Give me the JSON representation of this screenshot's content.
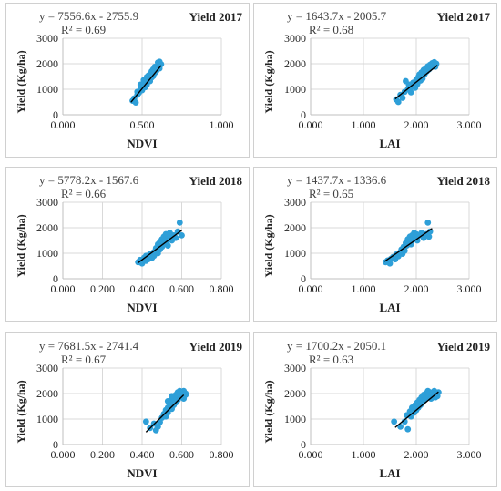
{
  "chart_data": [
    {
      "type": "scatter",
      "title": "Yield 2017",
      "equation": "y = 7556.6x - 2755.9",
      "r2": "R² = 0.69",
      "xlabel": "NDVI",
      "ylabel": "Yield (Kg/ha)",
      "xlim": [
        0,
        1
      ],
      "ylim": [
        0,
        3000
      ],
      "xticks": [
        0,
        0.5,
        1
      ],
      "xtick_labels": [
        "0.000",
        "0.500",
        "1.000"
      ],
      "yticks": [
        0,
        1000,
        2000,
        3000
      ],
      "ytick_labels": [
        "0",
        "1000",
        "2000",
        "3000"
      ],
      "grid": true,
      "trendline": {
        "slope": 7556.6,
        "intercept": -2755.9,
        "x_range": [
          0.43,
          0.62
        ]
      },
      "points": [
        [
          0.44,
          550
        ],
        [
          0.45,
          640
        ],
        [
          0.46,
          480
        ],
        [
          0.47,
          780
        ],
        [
          0.47,
          900
        ],
        [
          0.48,
          860
        ],
        [
          0.49,
          1020
        ],
        [
          0.49,
          1180
        ],
        [
          0.5,
          960
        ],
        [
          0.5,
          1120
        ],
        [
          0.51,
          1250
        ],
        [
          0.51,
          1360
        ],
        [
          0.52,
          1080
        ],
        [
          0.52,
          1300
        ],
        [
          0.53,
          1480
        ],
        [
          0.53,
          1180
        ],
        [
          0.54,
          1400
        ],
        [
          0.54,
          1540
        ],
        [
          0.55,
          1320
        ],
        [
          0.55,
          1580
        ],
        [
          0.56,
          1460
        ],
        [
          0.56,
          1700
        ],
        [
          0.57,
          1520
        ],
        [
          0.57,
          1780
        ],
        [
          0.58,
          1640
        ],
        [
          0.58,
          1880
        ],
        [
          0.59,
          1720
        ],
        [
          0.6,
          1900
        ],
        [
          0.6,
          2050
        ],
        [
          0.61,
          1820
        ],
        [
          0.61,
          2080
        ],
        [
          0.62,
          1980
        ]
      ]
    },
    {
      "type": "scatter",
      "title": "Yield 2017",
      "equation": "y = 1643.7x - 2005.7",
      "r2": "R² = 0.68",
      "xlabel": "LAI",
      "ylabel": "Yield (Kg/ha)",
      "xlim": [
        0,
        3
      ],
      "ylim": [
        0,
        3000
      ],
      "xticks": [
        0,
        1,
        2,
        3
      ],
      "xtick_labels": [
        "0.000",
        "1.000",
        "2.000",
        "3.000"
      ],
      "yticks": [
        0,
        1000,
        2000,
        3000
      ],
      "ytick_labels": [
        "0",
        "1000",
        "2000",
        "3000"
      ],
      "grid": true,
      "trendline": {
        "slope": 1643.7,
        "intercept": -2005.7,
        "x_range": [
          1.6,
          2.4
        ]
      },
      "points": [
        [
          1.62,
          600
        ],
        [
          1.66,
          500
        ],
        [
          1.7,
          780
        ],
        [
          1.74,
          660
        ],
        [
          1.78,
          900
        ],
        [
          1.8,
          1320
        ],
        [
          1.84,
          1000
        ],
        [
          1.86,
          1180
        ],
        [
          1.9,
          880
        ],
        [
          1.92,
          1100
        ],
        [
          1.94,
          1260
        ],
        [
          1.98,
          1060
        ],
        [
          2.0,
          1380
        ],
        [
          2.02,
          1200
        ],
        [
          2.04,
          1480
        ],
        [
          2.06,
          1580
        ],
        [
          2.08,
          1340
        ],
        [
          2.1,
          1660
        ],
        [
          2.12,
          1420
        ],
        [
          2.14,
          1760
        ],
        [
          2.16,
          1600
        ],
        [
          2.18,
          1820
        ],
        [
          2.2,
          1700
        ],
        [
          2.22,
          1900
        ],
        [
          2.24,
          1780
        ],
        [
          2.26,
          1960
        ],
        [
          2.28,
          1860
        ],
        [
          2.3,
          2020
        ],
        [
          2.32,
          1940
        ],
        [
          2.34,
          2060
        ],
        [
          2.36,
          1880
        ],
        [
          2.38,
          2000
        ]
      ]
    },
    {
      "type": "scatter",
      "title": "Yield 2018",
      "equation": "y = 5778.2x - 1567.6",
      "r2": "R² = 0.66",
      "xlabel": "NDVI",
      "ylabel": "Yield (Kg/ha)",
      "xlim": [
        0,
        0.8
      ],
      "ylim": [
        0,
        3000
      ],
      "xticks": [
        0,
        0.2,
        0.4,
        0.6,
        0.8
      ],
      "xtick_labels": [
        "0.000",
        "0.200",
        "0.400",
        "0.600",
        "0.800"
      ],
      "yticks": [
        0,
        1000,
        2000,
        3000
      ],
      "ytick_labels": [
        "0",
        "1000",
        "2000",
        "3000"
      ],
      "grid": true,
      "trendline": {
        "slope": 5778.2,
        "intercept": -1567.6,
        "x_range": [
          0.38,
          0.6
        ]
      },
      "points": [
        [
          0.38,
          650
        ],
        [
          0.39,
          740
        ],
        [
          0.4,
          600
        ],
        [
          0.41,
          820
        ],
        [
          0.42,
          700
        ],
        [
          0.42,
          900
        ],
        [
          0.43,
          760
        ],
        [
          0.44,
          980
        ],
        [
          0.45,
          820
        ],
        [
          0.46,
          1050
        ],
        [
          0.46,
          900
        ],
        [
          0.47,
          1200
        ],
        [
          0.48,
          1000
        ],
        [
          0.48,
          1350
        ],
        [
          0.49,
          1150
        ],
        [
          0.49,
          1450
        ],
        [
          0.5,
          1250
        ],
        [
          0.5,
          1550
        ],
        [
          0.51,
          1350
        ],
        [
          0.51,
          1650
        ],
        [
          0.52,
          1450
        ],
        [
          0.52,
          1750
        ],
        [
          0.53,
          1550
        ],
        [
          0.53,
          1300
        ],
        [
          0.54,
          1650
        ],
        [
          0.54,
          1800
        ],
        [
          0.55,
          1500
        ],
        [
          0.56,
          1700
        ],
        [
          0.57,
          1600
        ],
        [
          0.58,
          1850
        ],
        [
          0.59,
          2200
        ],
        [
          0.6,
          1700
        ]
      ]
    },
    {
      "type": "scatter",
      "title": "Yield 2018",
      "equation": "y = 1437.7x - 1336.6",
      "r2": "R² = 0.65",
      "xlabel": "LAI",
      "ylabel": "Yield (Kg/ha)",
      "xlim": [
        0,
        3
      ],
      "ylim": [
        0,
        3000
      ],
      "xticks": [
        0,
        1,
        2,
        3
      ],
      "xtick_labels": [
        "0.000",
        "1.000",
        "2.000",
        "3.000"
      ],
      "yticks": [
        0,
        1000,
        2000,
        3000
      ],
      "ytick_labels": [
        "0",
        "1000",
        "2000",
        "3000"
      ],
      "grid": true,
      "trendline": {
        "slope": 1437.7,
        "intercept": -1336.6,
        "x_range": [
          1.4,
          2.3
        ]
      },
      "points": [
        [
          1.42,
          650
        ],
        [
          1.46,
          720
        ],
        [
          1.5,
          600
        ],
        [
          1.52,
          780
        ],
        [
          1.56,
          850
        ],
        [
          1.6,
          760
        ],
        [
          1.62,
          950
        ],
        [
          1.66,
          880
        ],
        [
          1.7,
          1050
        ],
        [
          1.72,
          1150
        ],
        [
          1.74,
          980
        ],
        [
          1.76,
          1250
        ],
        [
          1.78,
          1100
        ],
        [
          1.8,
          1400
        ],
        [
          1.82,
          1300
        ],
        [
          1.84,
          1550
        ],
        [
          1.86,
          1450
        ],
        [
          1.88,
          1650
        ],
        [
          1.9,
          1350
        ],
        [
          1.92,
          1700
        ],
        [
          1.94,
          1550
        ],
        [
          1.96,
          1800
        ],
        [
          1.98,
          1650
        ],
        [
          2.0,
          1750
        ],
        [
          2.02,
          1500
        ],
        [
          2.06,
          1700
        ],
        [
          2.1,
          1800
        ],
        [
          2.14,
          1600
        ],
        [
          2.18,
          1750
        ],
        [
          2.22,
          2200
        ],
        [
          2.24,
          1650
        ],
        [
          2.26,
          1850
        ]
      ]
    },
    {
      "type": "scatter",
      "title": "Yield 2019",
      "equation": "y = 7681.5x - 2741.4",
      "r2": "R² = 0.67",
      "xlabel": "NDVI",
      "ylabel": "Yield (Kg/ha)",
      "xlim": [
        0,
        0.8
      ],
      "ylim": [
        0,
        3000
      ],
      "xticks": [
        0,
        0.2,
        0.4,
        0.6,
        0.8
      ],
      "xtick_labels": [
        "0.000",
        "0.200",
        "0.400",
        "0.600",
        "0.800"
      ],
      "yticks": [
        0,
        1000,
        2000,
        3000
      ],
      "ytick_labels": [
        "0",
        "1000",
        "2000",
        "3000"
      ],
      "grid": true,
      "trendline": {
        "slope": 7681.5,
        "intercept": -2741.4,
        "x_range": [
          0.42,
          0.61
        ]
      },
      "points": [
        [
          0.42,
          900
        ],
        [
          0.44,
          650
        ],
        [
          0.46,
          820
        ],
        [
          0.47,
          560
        ],
        [
          0.48,
          700
        ],
        [
          0.49,
          880
        ],
        [
          0.5,
          1050
        ],
        [
          0.51,
          1200
        ],
        [
          0.52,
          1350
        ],
        [
          0.52,
          1100
        ],
        [
          0.53,
          1450
        ],
        [
          0.53,
          1250
        ],
        [
          0.54,
          1550
        ],
        [
          0.54,
          1650
        ],
        [
          0.55,
          1400
        ],
        [
          0.55,
          1750
        ],
        [
          0.56,
          1550
        ],
        [
          0.56,
          1850
        ],
        [
          0.57,
          1650
        ],
        [
          0.57,
          1950
        ],
        [
          0.58,
          1750
        ],
        [
          0.58,
          2050
        ],
        [
          0.59,
          1850
        ],
        [
          0.59,
          2100
        ],
        [
          0.6,
          1900
        ],
        [
          0.6,
          2050
        ],
        [
          0.61,
          1800
        ],
        [
          0.61,
          2100
        ],
        [
          0.62,
          1950
        ],
        [
          0.62,
          2000
        ],
        [
          0.53,
          1700
        ],
        [
          0.55,
          1900
        ]
      ]
    },
    {
      "type": "scatter",
      "title": "Yield 2019",
      "equation": "y = 1700.2x - 2050.1",
      "r2": "R² = 0.63",
      "xlabel": "LAI",
      "ylabel": "Yield (Kg/ha)",
      "xlim": [
        0,
        3
      ],
      "ylim": [
        0,
        3000
      ],
      "xticks": [
        0,
        1,
        2,
        3
      ],
      "xtick_labels": [
        "0.000",
        "1.000",
        "2.000",
        "3.000"
      ],
      "yticks": [
        0,
        1000,
        2000,
        3000
      ],
      "ytick_labels": [
        "0",
        "1000",
        "2000",
        "3000"
      ],
      "grid": true,
      "trendline": {
        "slope": 1700.2,
        "intercept": -2050.1,
        "x_range": [
          1.6,
          2.42
        ]
      },
      "points": [
        [
          1.58,
          900
        ],
        [
          1.7,
          700
        ],
        [
          1.78,
          900
        ],
        [
          1.82,
          1150
        ],
        [
          1.84,
          600
        ],
        [
          1.88,
          1300
        ],
        [
          1.9,
          1100
        ],
        [
          1.92,
          1450
        ],
        [
          1.96,
          1250
        ],
        [
          1.98,
          1550
        ],
        [
          2.0,
          1350
        ],
        [
          2.02,
          1650
        ],
        [
          2.04,
          1450
        ],
        [
          2.06,
          1750
        ],
        [
          2.08,
          1550
        ],
        [
          2.1,
          1850
        ],
        [
          2.12,
          1650
        ],
        [
          2.14,
          1950
        ],
        [
          2.16,
          1750
        ],
        [
          2.18,
          2000
        ],
        [
          2.2,
          1850
        ],
        [
          2.22,
          2100
        ],
        [
          2.24,
          1900
        ],
        [
          2.26,
          2050
        ],
        [
          2.28,
          1800
        ],
        [
          2.3,
          2000
        ],
        [
          2.32,
          1950
        ],
        [
          2.34,
          2100
        ],
        [
          2.36,
          1850
        ],
        [
          2.38,
          2000
        ],
        [
          2.4,
          1900
        ],
        [
          2.42,
          2050
        ]
      ]
    }
  ]
}
